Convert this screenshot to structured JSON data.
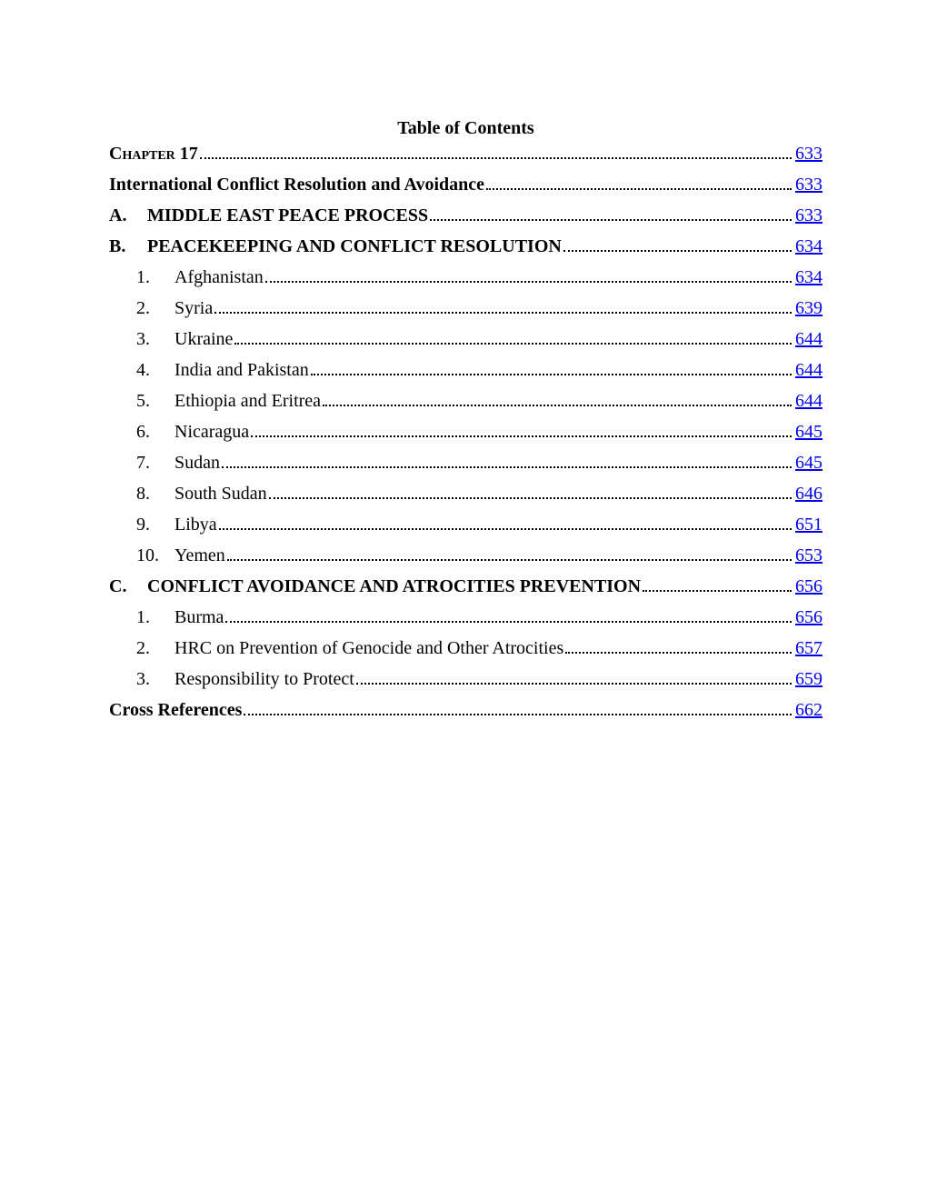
{
  "title": "Table of Contents",
  "entries": [
    {
      "level": 0,
      "marker": "",
      "label": "Chapter 17",
      "page": "633",
      "bold": true,
      "smallcaps": true
    },
    {
      "level": 0,
      "marker": "",
      "label": "International Conflict Resolution and Avoidance",
      "page": "633",
      "bold": true,
      "spaceBefore": true
    },
    {
      "level": 1,
      "marker": "A.",
      "label": "MIDDLE EAST PEACE PROCESS",
      "page": "633",
      "bold": true,
      "spaceBefore": true
    },
    {
      "level": 1,
      "marker": "B.",
      "label": "PEACEKEEPING AND CONFLICT RESOLUTION",
      "page": "634",
      "bold": true,
      "spaceBefore": true
    },
    {
      "level": 2,
      "marker": "1.",
      "label": "Afghanistan",
      "page": "634",
      "spaceBefore": true
    },
    {
      "level": 2,
      "marker": "2.",
      "label": "Syria",
      "page": "639",
      "spaceBefore": true
    },
    {
      "level": 2,
      "marker": "3.",
      "label": "Ukraine",
      "page": "644",
      "spaceBefore": true
    },
    {
      "level": 2,
      "marker": "4.",
      "label": "India and Pakistan",
      "page": "644",
      "spaceBefore": true
    },
    {
      "level": 2,
      "marker": "5.",
      "label": "Ethiopia and Eritrea",
      "page": "644",
      "spaceBefore": true
    },
    {
      "level": 2,
      "marker": "6.",
      "label": "Nicaragua",
      "page": "645",
      "spaceBefore": true
    },
    {
      "level": 2,
      "marker": "7.",
      "label": "Sudan",
      "page": "645",
      "spaceBefore": true
    },
    {
      "level": 2,
      "marker": "8.",
      "label": "South Sudan",
      "page": "646",
      "spaceBefore": true
    },
    {
      "level": 2,
      "marker": "9.",
      "label": "Libya",
      "page": "651",
      "spaceBefore": true
    },
    {
      "level": 2,
      "marker": "10.",
      "label": "Yemen",
      "page": "653",
      "spaceBefore": true
    },
    {
      "level": 1,
      "marker": "C.",
      "label": "CONFLICT AVOIDANCE AND ATROCITIES PREVENTION",
      "page": "656",
      "bold": true,
      "spaceBefore": true
    },
    {
      "level": 2,
      "marker": "1.",
      "label": "Burma",
      "page": "656",
      "spaceBefore": true
    },
    {
      "level": 2,
      "marker": "2.",
      "label": "HRC on Prevention of Genocide and Other Atrocities",
      "page": "657",
      "spaceBefore": true
    },
    {
      "level": 2,
      "marker": "3.",
      "label": "Responsibility to Protect",
      "page": "659",
      "spaceBefore": true
    },
    {
      "level": 0,
      "marker": "",
      "label": "Cross References",
      "page": "662",
      "bold": true,
      "spaceBefore": true
    }
  ],
  "colors": {
    "link": "#0000ee",
    "text": "#000000",
    "background": "#ffffff"
  },
  "fontsize": {
    "body": 20,
    "title": 20
  }
}
